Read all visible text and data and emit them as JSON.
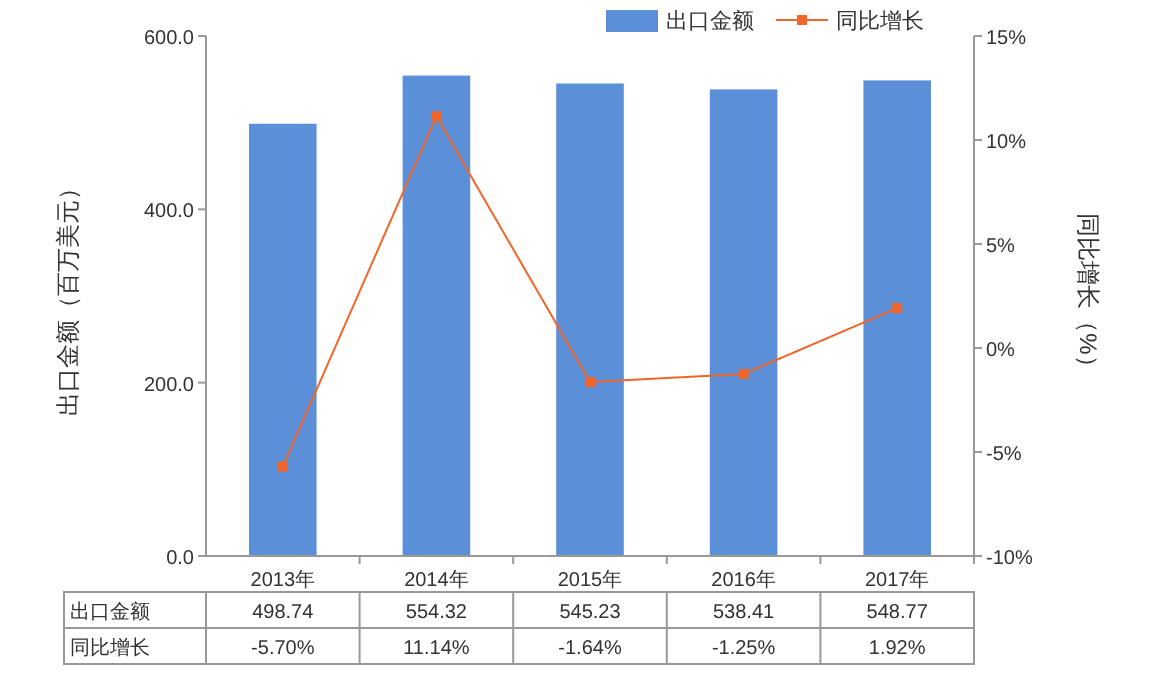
{
  "chart_data": {
    "type": "bar",
    "categories": [
      "2013年",
      "2014年",
      "2015年",
      "2016年",
      "2017年"
    ],
    "series": [
      {
        "name": "出口金额",
        "color": "#5b8fd7",
        "values": [
          498.74,
          554.32,
          545.23,
          538.41,
          548.77
        ],
        "value_labels": [
          "498.74",
          "554.32",
          "545.23",
          "538.41",
          "548.77"
        ]
      },
      {
        "name": "同比增长",
        "type": "line",
        "axis": "y2",
        "color": "#f0662a",
        "values": [
          -5.7,
          11.14,
          -1.64,
          -1.25,
          1.92
        ],
        "value_labels": [
          "-5.70%",
          "11.14%",
          "-1.64%",
          "-1.25%",
          "1.92%"
        ]
      }
    ],
    "ylabel": "出口金额（百万美元）",
    "y2label": "同比增长（%）",
    "ylim": [
      0,
      600
    ],
    "yticks": [
      {
        "value": 0,
        "label": "0.0"
      },
      {
        "value": 200,
        "label": "200.0"
      },
      {
        "value": 400,
        "label": "400.0"
      },
      {
        "value": 600,
        "label": "600.0"
      }
    ],
    "y2lim": [
      -10,
      15
    ],
    "y2ticks": [
      {
        "value": -10,
        "label": "-10%"
      },
      {
        "value": -5,
        "label": "-5%"
      },
      {
        "value": 0,
        "label": "0%"
      },
      {
        "value": 5,
        "label": "5%"
      },
      {
        "value": 10,
        "label": "10%"
      },
      {
        "value": 15,
        "label": "15%"
      }
    ],
    "marker": "square",
    "legend": "top right",
    "grid": false
  }
}
